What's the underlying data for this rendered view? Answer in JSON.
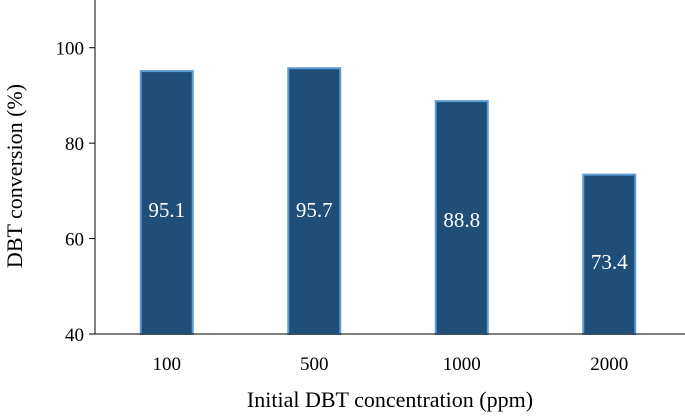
{
  "chart_data": {
    "type": "bar",
    "categories": [
      "100",
      "500",
      "1000",
      "2000"
    ],
    "values": [
      95.1,
      95.7,
      88.8,
      73.4
    ],
    "data_labels": [
      "95.1",
      "95.7",
      "88.8",
      "73.4"
    ],
    "xlabel": "Initial DBT concentration (ppm)",
    "ylabel": "DBT conversion (%)",
    "ylim": [
      40,
      110
    ],
    "yticks": [
      40,
      60,
      80,
      100
    ],
    "ytick_labels": [
      "40",
      "60",
      "80",
      "100"
    ],
    "grid": false,
    "legend": "none",
    "colors": {
      "bar_fill": "#1f4e79",
      "bar_edge": "#5b9bd5",
      "axis": "#000000",
      "label_text": "#ffffff"
    }
  }
}
